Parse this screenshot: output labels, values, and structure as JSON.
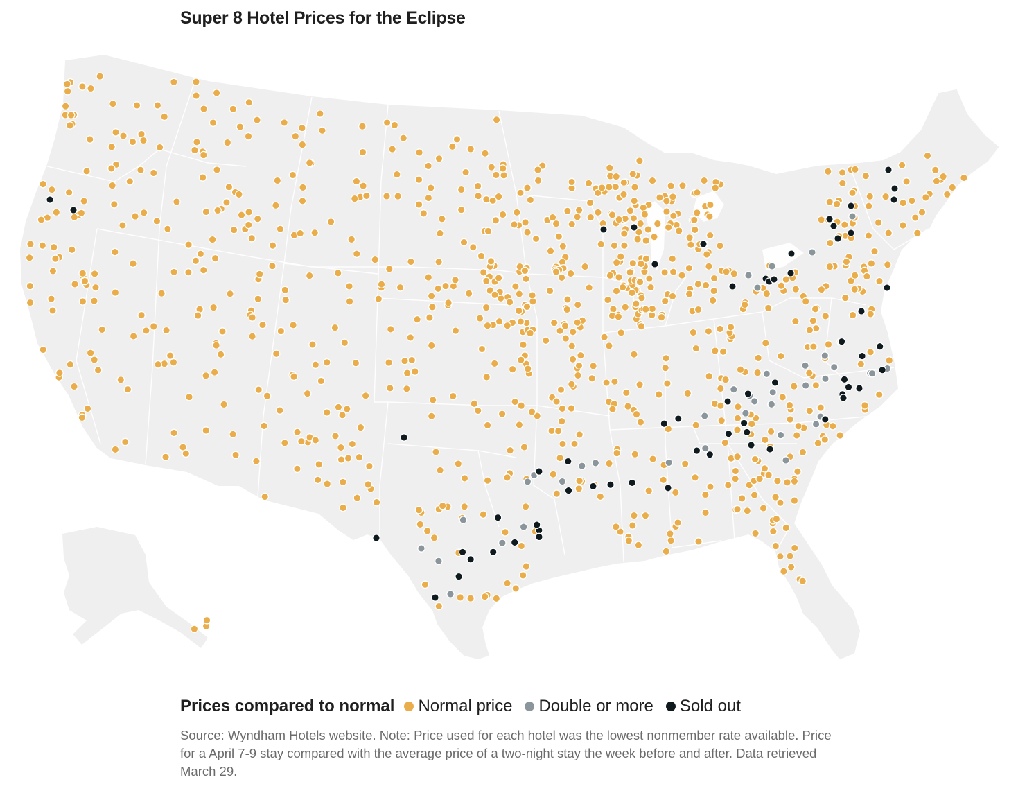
{
  "title": "Super 8 Hotel Prices for the Eclipse",
  "legend": {
    "title": "Prices compared to normal",
    "items": [
      {
        "label": "Normal price",
        "color": "#e9ae4b"
      },
      {
        "label": "Double or more",
        "color": "#8a969b"
      },
      {
        "label": "Sold out",
        "color": "#0f1a1e"
      }
    ]
  },
  "source_note": "Source: Wyndham Hotels website. Note: Price used for each hotel was the lowest nonmember rate available. Price for a April 7-9 stay compared with the average price of a two-night stay the week before and after. Data retrieved March 29.",
  "map": {
    "land_color": "#efefef",
    "border_color": "#ffffff"
  },
  "chart_data": {
    "type": "scatter",
    "categories": [
      "Normal price",
      "Double or more",
      "Sold out"
    ],
    "colors": [
      "#e9ae4b",
      "#8a969b",
      "#0f1a1e"
    ]
  }
}
